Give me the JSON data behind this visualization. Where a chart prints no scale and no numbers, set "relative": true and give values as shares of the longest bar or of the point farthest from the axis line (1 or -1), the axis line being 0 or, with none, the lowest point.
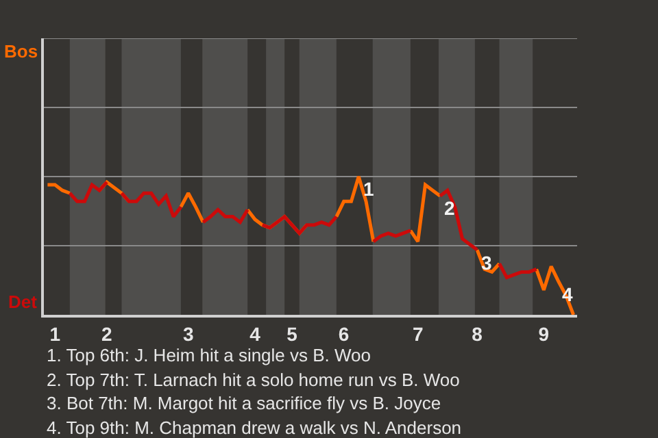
{
  "chart_data": {
    "type": "line",
    "categories": [
      null,
      "1",
      null,
      null,
      null,
      null,
      null,
      null,
      "2",
      null,
      null,
      null,
      null,
      null,
      null,
      null,
      null,
      null,
      null,
      "3",
      null,
      null,
      null,
      null,
      null,
      null,
      null,
      null,
      "4",
      null,
      null,
      null,
      null,
      "5",
      null,
      null,
      null,
      null,
      null,
      null,
      "6",
      null,
      null,
      null,
      null,
      null,
      null,
      null,
      null,
      null,
      "7",
      null,
      null,
      null,
      null,
      null,
      null,
      null,
      "8",
      null,
      null,
      null,
      null,
      null,
      null,
      null,
      null,
      "9",
      null,
      null,
      null,
      null
    ],
    "relative": true,
    "series": [
      {
        "color": "#ff6a00",
        "values": [
          0.94,
          0.94,
          0.9,
          0.88,
          null,
          null,
          null,
          0.9,
          0.96,
          0.92,
          0.88,
          0.82,
          null,
          null,
          null,
          null,
          null,
          null,
          0.78,
          0.88,
          0.78,
          0.67,
          null,
          null,
          null,
          null,
          null,
          0.76,
          0.69,
          0.65,
          0.63,
          0.67,
          0.71,
          0.65,
          0.59,
          0.65,
          null,
          null,
          null,
          0.71,
          0.82,
          0.82,
          1,
          0.82,
          0.53,
          null,
          null,
          null,
          null,
          0.61,
          0.53,
          0.94,
          0.9,
          0.86,
          null,
          null,
          null,
          null,
          0.47,
          0.33,
          0.31,
          0.37,
          null,
          null,
          null,
          null,
          0.33,
          0.18,
          0.35,
          0.24,
          0.14,
          0
        ]
      },
      {
        "color": "#cc0a0a",
        "values": [
          null,
          null,
          null,
          0.88,
          0.82,
          0.82,
          0.94,
          0.9,
          0.96,
          null,
          0.88,
          0.82,
          0.82,
          0.88,
          0.88,
          0.8,
          0.86,
          0.71,
          0.78,
          null,
          null,
          0.67,
          0.71,
          0.76,
          0.71,
          0.71,
          0.67,
          0.76,
          null,
          0.65,
          0.63,
          0.67,
          0.71,
          0.65,
          0.59,
          0.65,
          0.65,
          0.67,
          0.65,
          0.71,
          null,
          null,
          null,
          null,
          0.53,
          0.57,
          0.59,
          0.57,
          0.59,
          0.61,
          null,
          null,
          null,
          0.86,
          0.9,
          0.78,
          0.55,
          0.51,
          0.47,
          null,
          null,
          0.37,
          0.27,
          0.29,
          0.31,
          0.31,
          0.33,
          null,
          null,
          null,
          null,
          null
        ]
      }
    ],
    "ref_lines": [
      {
        "axis": "y",
        "value": 0.5,
        "color": "#8a8a8a"
      },
      {
        "axis": "y",
        "value": 1,
        "color": "#8a8a8a"
      },
      {
        "axis": "y",
        "value": 1.5,
        "color": "#8a8a8a"
      },
      {
        "axis": "y",
        "value": 2,
        "color": "#8a8a8a"
      }
    ],
    "marker": "none",
    "line_style": "solid",
    "annotations": [
      "Bos",
      "Det",
      {
        "text": "1",
        "y": 1
      },
      {
        "text": "2",
        "y": 0.86
      },
      {
        "text": "3",
        "y": 0.47
      },
      {
        "text": "4",
        "y": 0.24
      },
      "1. Top 6th: J. Heim hit a single vs B. Woo",
      "2. Top 7th: T. Larnach hit a solo home run vs B. Woo",
      "3. Bot 7th: M. Margot hit a sacrifice fly vs B. Joyce",
      "4. Top 9th: M. Chapman drew a walk vs N. Anderson"
    ]
  }
}
